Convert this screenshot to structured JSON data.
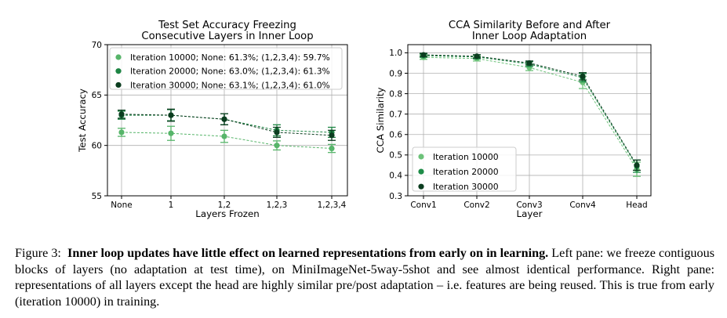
{
  "chart_data": [
    {
      "type": "line",
      "title": "Test Set Accuracy Freezing\nConsecutive Layers in Inner Loop",
      "xlabel": "Layers Frozen",
      "ylabel": "Test Accuracy",
      "categories": [
        "None",
        "1",
        "1,2",
        "1,2,3",
        "1,2,3,4"
      ],
      "ylim": [
        55,
        70
      ],
      "yticks": [
        "55",
        "60",
        "65",
        "70"
      ],
      "grid": true,
      "legend_position": "top-left",
      "series": [
        {
          "name": "Iteration 10000; None: 61.3%; (1,2,3,4): 59.7%",
          "color": "#57b56a",
          "values": [
            61.3,
            61.2,
            60.9,
            60.0,
            59.7
          ],
          "err": [
            0.4,
            0.7,
            0.6,
            0.45,
            0.4
          ]
        },
        {
          "name": "Iteration 20000; None: 63.0%; (1,2,3,4): 61.3%",
          "color": "#1e8544",
          "values": [
            63.0,
            63.0,
            62.6,
            61.5,
            61.3
          ],
          "err": [
            0.4,
            0.55,
            0.55,
            0.55,
            0.5
          ]
        },
        {
          "name": "Iteration 30000; None: 63.1%; (1,2,3,4): 61.0%",
          "color": "#0b3d1f",
          "values": [
            63.1,
            63.0,
            62.6,
            61.3,
            61.0
          ],
          "err": [
            0.4,
            0.6,
            0.55,
            0.5,
            0.5
          ]
        }
      ]
    },
    {
      "type": "line",
      "title": "CCA Similarity Before and After\nInner Loop Adaptation",
      "xlabel": "Layer",
      "ylabel": "CCA Similarity",
      "categories": [
        "Conv1",
        "Conv2",
        "Conv3",
        "Conv4",
        "Head"
      ],
      "ylim": [
        0.3,
        1.04
      ],
      "yticks": [
        "0.3",
        "0.4",
        "0.5",
        "0.6",
        "0.7",
        "0.8",
        "0.9",
        "1.0"
      ],
      "grid": true,
      "legend_position": "bottom-left",
      "series": [
        {
          "name": "Iteration 10000",
          "color": "#6cc279",
          "values": [
            0.978,
            0.972,
            0.928,
            0.855,
            0.43
          ],
          "err": [
            0.01,
            0.012,
            0.015,
            0.03,
            0.035
          ]
        },
        {
          "name": "Iteration 20000",
          "color": "#1e8c48",
          "values": [
            0.986,
            0.98,
            0.945,
            0.878,
            0.445
          ],
          "err": [
            0.008,
            0.01,
            0.012,
            0.02,
            0.03
          ]
        },
        {
          "name": "Iteration 30000",
          "color": "#0b3d1f",
          "values": [
            0.99,
            0.983,
            0.95,
            0.885,
            0.45
          ],
          "err": [
            0.008,
            0.008,
            0.01,
            0.018,
            0.025
          ]
        }
      ]
    }
  ],
  "caption": {
    "label": "Figure 3:",
    "bold": "Inner loop updates have little effect on learned representations from early on in learning.",
    "rest": "Left pane: we freeze contiguous blocks of layers (no adaptation at test time), on MiniImageNet-5way-5shot and see almost identical performance. Right pane: representations of all layers except the head are highly similar pre/post adaptation – i.e. features are being reused. This is true from early (iteration 10000) in training."
  }
}
